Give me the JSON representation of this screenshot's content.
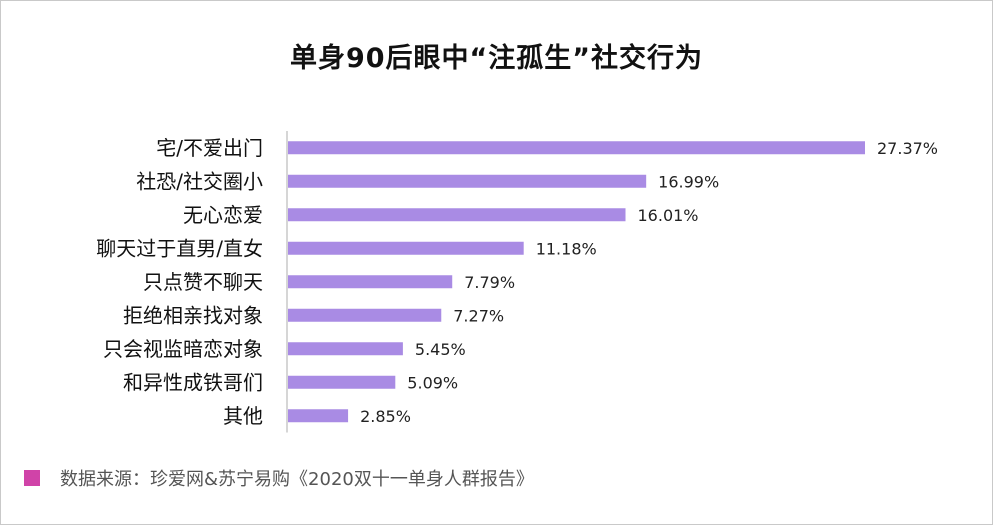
{
  "chart_data": {
    "type": "bar",
    "orientation": "horizontal",
    "title": "单身90后眼中“注孤生”社交行为",
    "categories": [
      "宅/不爱出门",
      "社恐/社交圈小",
      "无心恋爱",
      "聊天过于直男/直女",
      "只点赞不聊天",
      "拒绝相亲找对象",
      "只会视监暗恋对象",
      "和异性成铁哥们",
      "其他"
    ],
    "values": [
      27.37,
      16.99,
      16.01,
      11.18,
      7.79,
      7.27,
      5.45,
      5.09,
      2.85
    ],
    "data_labels": [
      "27.37%",
      "16.99%",
      "16.01%",
      "11.18%",
      "7.79%",
      "7.27%",
      "5.45%",
      "5.09%",
      "2.85%"
    ],
    "unit": "%",
    "xlim": [
      0,
      27.37
    ],
    "grid": false,
    "legend": "none",
    "bar_color": "#a98be4",
    "axis_color": "#c8c8c8"
  },
  "source": {
    "text": "数据来源：珍爱网&苏宁易购《2020双十一单身人群报告》",
    "swatch_color": "#d043a8"
  }
}
